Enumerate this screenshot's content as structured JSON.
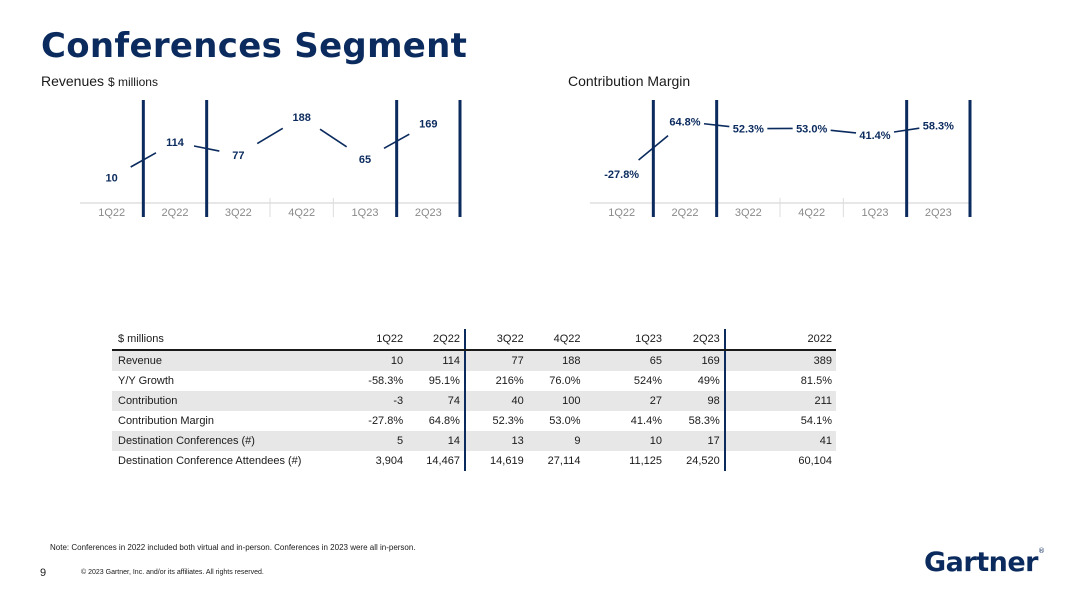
{
  "title": "Conferences Segment",
  "revenue_title": "Revenues",
  "revenue_unit": "$ millions",
  "cm_title": "Contribution Margin",
  "accent_color": "#0b2b5e",
  "chart_data": [
    {
      "type": "line",
      "title": "Revenues $ millions",
      "categories": [
        "1Q22",
        "2Q22",
        "3Q22",
        "4Q22",
        "1Q23",
        "2Q23"
      ],
      "values": [
        10,
        114,
        77,
        188,
        65,
        169
      ],
      "labels": [
        "10",
        "114",
        "77",
        "188",
        "65",
        "169"
      ],
      "highlighted": [
        "2Q22",
        "2Q23"
      ],
      "ylim": [
        0,
        200
      ],
      "grid": false
    },
    {
      "type": "line",
      "title": "Contribution Margin",
      "categories": [
        "1Q22",
        "2Q22",
        "3Q22",
        "4Q22",
        "1Q23",
        "2Q23"
      ],
      "values": [
        -27.8,
        64.8,
        52.3,
        53.0,
        41.4,
        58.3
      ],
      "labels": [
        "-27.8%",
        "64.8%",
        "52.3%",
        "53.0%",
        "41.4%",
        "58.3%"
      ],
      "highlighted": [
        "2Q22",
        "2Q23"
      ],
      "ylim": [
        -40,
        80
      ],
      "grid": false
    }
  ],
  "table": {
    "headers": [
      "$ millions",
      "1Q22",
      "2Q22",
      "3Q22",
      "4Q22",
      "1Q23",
      "2Q23",
      "2022"
    ],
    "rows": [
      [
        "Revenue",
        "10",
        "114",
        "77",
        "188",
        "65",
        "169",
        "389"
      ],
      [
        "Y/Y Growth",
        "-58.3%",
        "95.1%",
        "216%",
        "76.0%",
        "524%",
        "49%",
        "81.5%"
      ],
      [
        "Contribution",
        "-3",
        "74",
        "40",
        "100",
        "27",
        "98",
        "211"
      ],
      [
        "Contribution Margin",
        "-27.8%",
        "64.8%",
        "52.3%",
        "53.0%",
        "41.4%",
        "58.3%",
        "54.1%"
      ],
      [
        "Destination Conferences (#)",
        "5",
        "14",
        "13",
        "9",
        "10",
        "17",
        "41"
      ],
      [
        "Destination Conference Attendees (#)",
        "3,904",
        "14,467",
        "14,619",
        "27,114",
        "11,125",
        "24,520",
        "60,104"
      ]
    ]
  },
  "note": "Note: Conferences in 2022 included both virtual and in-person. Conferences in 2023 were all in-person.",
  "page_number": "9",
  "copyright": "© 2023 Gartner, Inc. and/or its affiliates. All rights reserved.",
  "logo_text": "Gartner",
  "logo_mark": "®"
}
